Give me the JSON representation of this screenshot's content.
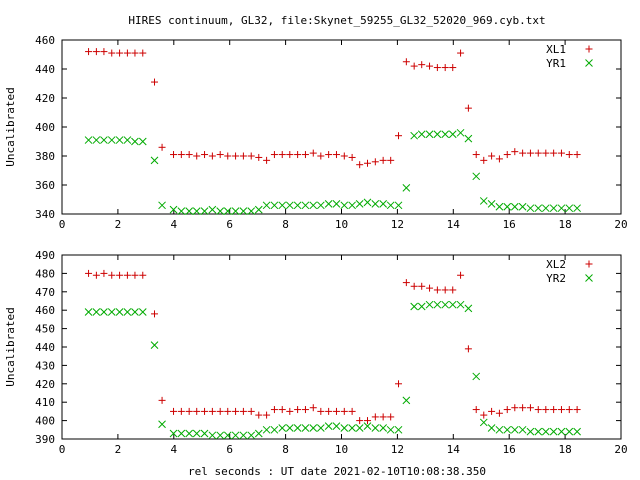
{
  "chart_data": [
    {
      "type": "scatter",
      "title": "HIRES continuum, GL32, file:Skynet_59255_GL32_52020_969.cyb.txt",
      "ylabel": "Uncalibrated",
      "xlabel": "",
      "xlim": [
        0,
        20
      ],
      "ylim": [
        340,
        460
      ],
      "xticks": [
        0,
        2,
        4,
        6,
        8,
        10,
        12,
        14,
        16,
        18,
        20
      ],
      "yticks": [
        340,
        360,
        380,
        400,
        420,
        440,
        460
      ],
      "legend_position": "top-right",
      "series": [
        {
          "name": "XL1",
          "color": "#cc0000",
          "marker": "plus",
          "x": [
            0.95,
            1.23,
            1.5,
            1.78,
            2.06,
            2.34,
            2.61,
            2.89,
            3.31,
            3.58,
            3.99,
            4.27,
            4.55,
            4.82,
            5.1,
            5.38,
            5.66,
            5.93,
            6.21,
            6.49,
            6.77,
            7.04,
            7.32,
            7.6,
            7.88,
            8.15,
            8.43,
            8.71,
            8.99,
            9.26,
            9.54,
            9.82,
            10.1,
            10.38,
            10.65,
            10.93,
            11.21,
            11.49,
            11.76,
            12.04,
            12.32,
            12.6,
            12.87,
            13.15,
            13.43,
            13.71,
            13.98,
            14.26,
            14.54,
            14.82,
            15.09,
            15.37,
            15.65,
            15.93,
            16.2,
            16.48,
            16.76,
            17.04,
            17.31,
            17.59,
            17.87,
            18.15,
            18.43
          ],
          "y": [
            452,
            452,
            452,
            451,
            451,
            451,
            451,
            451,
            431,
            386,
            381,
            381,
            381,
            380,
            381,
            380,
            381,
            380,
            380,
            380,
            380,
            379,
            377,
            381,
            381,
            381,
            381,
            381,
            382,
            380,
            381,
            381,
            380,
            379,
            374,
            375,
            376,
            377,
            377,
            394,
            445,
            442,
            443,
            442,
            441,
            441,
            441,
            451,
            413,
            381,
            377,
            380,
            378,
            381,
            383,
            382,
            382,
            382,
            382,
            382,
            382,
            381,
            381
          ]
        },
        {
          "name": "YR1",
          "color": "#00aa00",
          "marker": "cross",
          "x": [
            0.95,
            1.23,
            1.5,
            1.78,
            2.06,
            2.34,
            2.61,
            2.89,
            3.31,
            3.58,
            3.99,
            4.27,
            4.55,
            4.82,
            5.1,
            5.38,
            5.66,
            5.93,
            6.21,
            6.49,
            6.77,
            7.04,
            7.32,
            7.6,
            7.88,
            8.15,
            8.43,
            8.71,
            8.99,
            9.26,
            9.54,
            9.82,
            10.1,
            10.38,
            10.65,
            10.93,
            11.21,
            11.49,
            11.76,
            12.04,
            12.32,
            12.6,
            12.87,
            13.15,
            13.43,
            13.71,
            13.98,
            14.26,
            14.54,
            14.82,
            15.09,
            15.37,
            15.65,
            15.93,
            16.2,
            16.48,
            16.76,
            17.04,
            17.31,
            17.59,
            17.87,
            18.15,
            18.43
          ],
          "y": [
            391,
            391,
            391,
            391,
            391,
            391,
            390,
            390,
            377,
            346,
            343,
            342,
            342,
            342,
            342,
            343,
            342,
            342,
            342,
            342,
            342,
            343,
            346,
            346,
            346,
            346,
            346,
            346,
            346,
            346,
            347,
            347,
            346,
            346,
            347,
            348,
            347,
            347,
            346,
            346,
            358,
            394,
            395,
            395,
            395,
            395,
            395,
            396,
            392,
            366,
            349,
            347,
            345,
            345,
            345,
            345,
            344,
            344,
            344,
            344,
            344,
            344,
            344
          ]
        }
      ]
    },
    {
      "type": "scatter",
      "title": "",
      "ylabel": "Uncalibrated",
      "xlabel": "rel seconds : UT date 2021-02-10T10:08:38.350",
      "xlim": [
        0,
        20
      ],
      "ylim": [
        390,
        490
      ],
      "xticks": [
        0,
        2,
        4,
        6,
        8,
        10,
        12,
        14,
        16,
        18,
        20
      ],
      "yticks": [
        390,
        400,
        410,
        420,
        430,
        440,
        450,
        460,
        470,
        480,
        490
      ],
      "legend_position": "top-right",
      "series": [
        {
          "name": "XL2",
          "color": "#cc0000",
          "marker": "plus",
          "x": [
            0.95,
            1.23,
            1.5,
            1.78,
            2.06,
            2.34,
            2.61,
            2.89,
            3.31,
            3.58,
            3.99,
            4.27,
            4.55,
            4.82,
            5.1,
            5.38,
            5.66,
            5.93,
            6.21,
            6.49,
            6.77,
            7.04,
            7.32,
            7.6,
            7.88,
            8.15,
            8.43,
            8.71,
            8.99,
            9.26,
            9.54,
            9.82,
            10.1,
            10.38,
            10.65,
            10.93,
            11.21,
            11.49,
            11.76,
            12.04,
            12.32,
            12.6,
            12.87,
            13.15,
            13.43,
            13.71,
            13.98,
            14.26,
            14.54,
            14.82,
            15.09,
            15.37,
            15.65,
            15.93,
            16.2,
            16.48,
            16.76,
            17.04,
            17.31,
            17.59,
            17.87,
            18.15,
            18.43
          ],
          "y": [
            480,
            479,
            480,
            479,
            479,
            479,
            479,
            479,
            458,
            411,
            405,
            405,
            405,
            405,
            405,
            405,
            405,
            405,
            405,
            405,
            405,
            403,
            403,
            406,
            406,
            405,
            406,
            406,
            407,
            405,
            405,
            405,
            405,
            405,
            400,
            400,
            402,
            402,
            402,
            420,
            475,
            473,
            473,
            472,
            471,
            471,
            471,
            479,
            439,
            406,
            403,
            405,
            404,
            406,
            407,
            407,
            407,
            406,
            406,
            406,
            406,
            406,
            406
          ]
        },
        {
          "name": "YR2",
          "color": "#00aa00",
          "marker": "cross",
          "x": [
            0.95,
            1.23,
            1.5,
            1.78,
            2.06,
            2.34,
            2.61,
            2.89,
            3.31,
            3.58,
            3.99,
            4.27,
            4.55,
            4.82,
            5.1,
            5.38,
            5.66,
            5.93,
            6.21,
            6.49,
            6.77,
            7.04,
            7.32,
            7.6,
            7.88,
            8.15,
            8.43,
            8.71,
            8.99,
            9.26,
            9.54,
            9.82,
            10.1,
            10.38,
            10.65,
            10.93,
            11.21,
            11.49,
            11.76,
            12.04,
            12.32,
            12.6,
            12.87,
            13.15,
            13.43,
            13.71,
            13.98,
            14.26,
            14.54,
            14.82,
            15.09,
            15.37,
            15.65,
            15.93,
            16.2,
            16.48,
            16.76,
            17.04,
            17.31,
            17.59,
            17.87,
            18.15,
            18.43
          ],
          "y": [
            459,
            459,
            459,
            459,
            459,
            459,
            459,
            459,
            441,
            398,
            393,
            393,
            393,
            393,
            393,
            392,
            392,
            392,
            392,
            392,
            392,
            393,
            395,
            395,
            396,
            396,
            396,
            396,
            396,
            396,
            397,
            397,
            396,
            396,
            396,
            397,
            396,
            396,
            395,
            395,
            411,
            462,
            462,
            463,
            463,
            463,
            463,
            463,
            461,
            424,
            399,
            396,
            395,
            395,
            395,
            395,
            394,
            394,
            394,
            394,
            394,
            394,
            394
          ]
        }
      ]
    }
  ]
}
